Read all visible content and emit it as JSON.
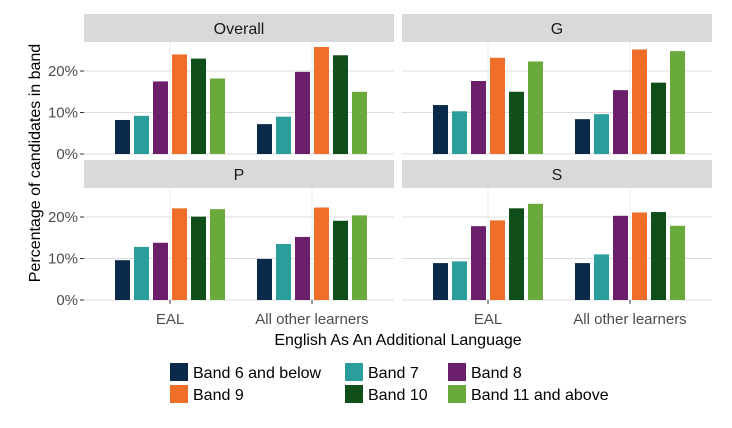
{
  "chart_data": {
    "type": "bar",
    "xlabel": "English As An Additional Language",
    "ylabel": "Percentage of candidates in band",
    "categories": [
      "EAL",
      "All other learners"
    ],
    "y_ticks": [
      "0%",
      "10%",
      "20%"
    ],
    "ylim": [
      0,
      27
    ],
    "legend_position": "bottom",
    "series_names": [
      "Band 6 and below",
      "Band 7",
      "Band 8",
      "Band 9",
      "Band 10",
      "Band 11 and above"
    ],
    "colors": [
      "#0b2a4a",
      "#2a9d9d",
      "#6b1f6b",
      "#ef6f2a",
      "#0f4d19",
      "#6aaa3d"
    ],
    "panels": [
      {
        "title": "Overall",
        "values": [
          [
            8.2,
            9.2,
            17.5,
            24.0,
            23.0,
            18.2
          ],
          [
            7.2,
            9.0,
            19.8,
            25.8,
            23.8,
            15.0
          ]
        ]
      },
      {
        "title": "G",
        "values": [
          [
            11.8,
            10.3,
            17.6,
            23.2,
            15.0,
            22.3
          ],
          [
            8.4,
            9.6,
            15.4,
            25.2,
            17.2,
            24.8
          ]
        ]
      },
      {
        "title": "P",
        "values": [
          [
            9.6,
            12.8,
            13.8,
            22.1,
            20.1,
            21.9
          ],
          [
            9.9,
            13.5,
            15.2,
            22.3,
            19.1,
            20.4
          ]
        ]
      },
      {
        "title": "S",
        "values": [
          [
            8.9,
            9.3,
            17.8,
            19.2,
            22.1,
            23.2
          ],
          [
            8.9,
            11.0,
            20.3,
            21.1,
            21.2,
            17.9
          ]
        ]
      }
    ]
  }
}
